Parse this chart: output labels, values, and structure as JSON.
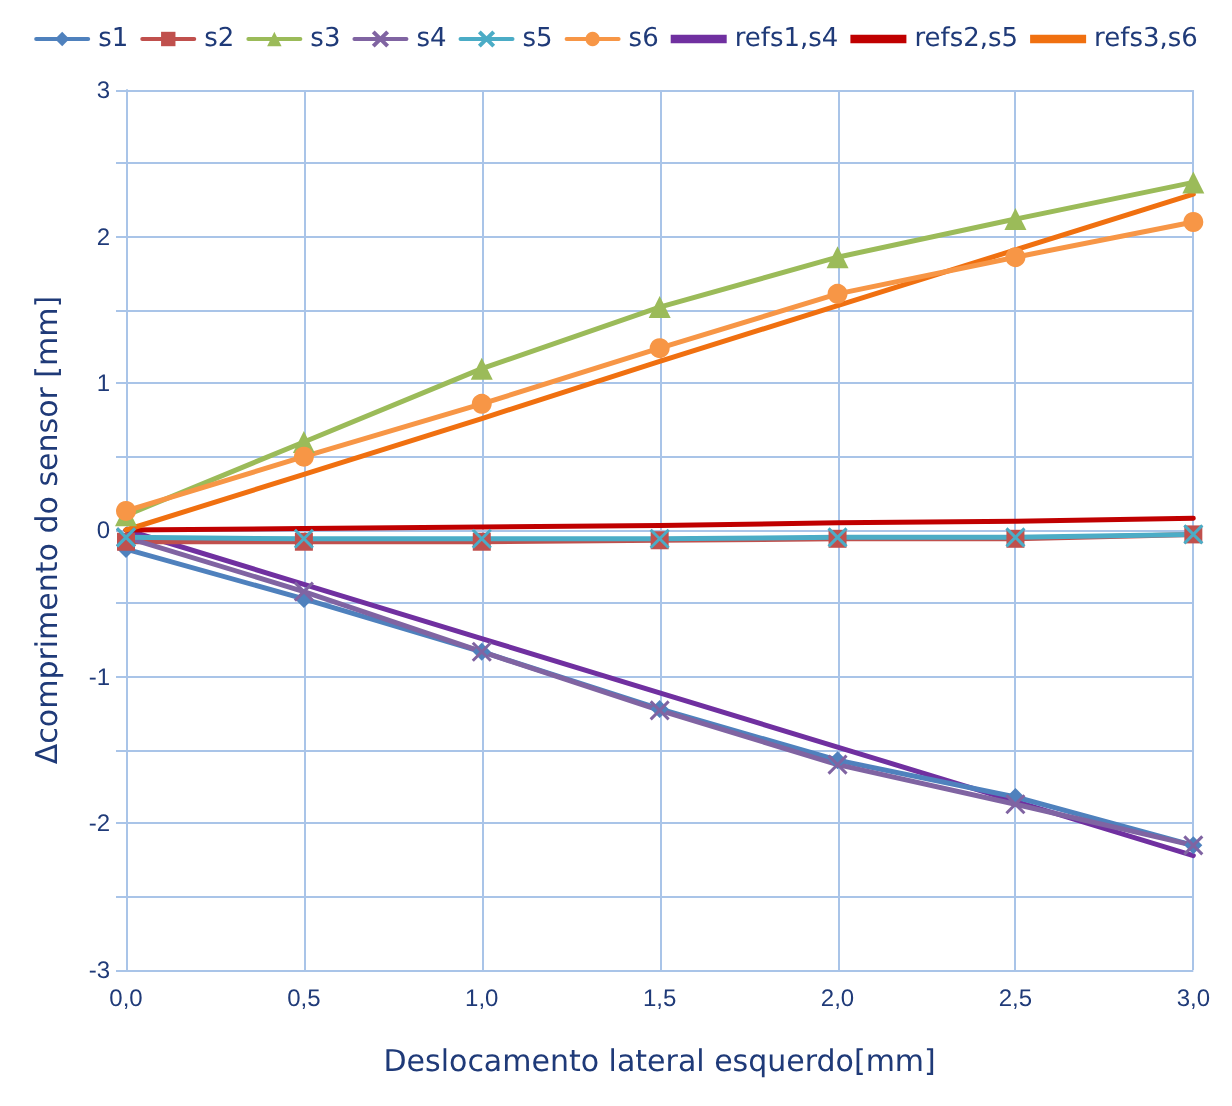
{
  "chart_data": {
    "type": "line",
    "xlabel": "Deslocamento lateral esquerdo[mm]",
    "ylabel": "Δcomprimento do sensor [mm]",
    "x": [
      0,
      0.5,
      1,
      1.5,
      2,
      2.5,
      3
    ],
    "xlim": [
      0,
      3
    ],
    "xticks": [
      {
        "value": 0,
        "label": "0,0"
      },
      {
        "value": 0.5,
        "label": "0,5"
      },
      {
        "value": 1,
        "label": "1,0"
      },
      {
        "value": 1.5,
        "label": "1,5"
      },
      {
        "value": 2,
        "label": "2,0"
      },
      {
        "value": 2.5,
        "label": "2,5"
      },
      {
        "value": 3,
        "label": "3,0"
      }
    ],
    "ylim": [
      -3,
      3
    ],
    "yticks": [
      -3,
      {
        "value": -2.5,
        "label": null
      },
      -2,
      {
        "value": -1.5,
        "label": null
      },
      -1,
      {
        "value": -0.5,
        "label": null
      },
      0,
      {
        "value": 0.5,
        "label": null
      },
      1,
      {
        "value": 1.5,
        "label": null
      },
      2,
      {
        "value": 2.5,
        "label": null
      },
      3
    ],
    "grid": true,
    "legend": "top",
    "line_style": "solid",
    "series": [
      {
        "name": "s1",
        "color": "#4f81bd",
        "marker": "diamond",
        "values": [
          -0.13,
          -0.47,
          -0.83,
          -1.22,
          -1.57,
          -1.82,
          -2.15
        ]
      },
      {
        "name": "s2",
        "color": "#c0504d",
        "marker": "square",
        "values": [
          -0.08,
          -0.08,
          -0.08,
          -0.07,
          -0.06,
          -0.06,
          -0.03
        ]
      },
      {
        "name": "s3",
        "color": "#9bbb59",
        "marker": "triangle",
        "values": [
          0.1,
          0.6,
          1.1,
          1.52,
          1.86,
          2.12,
          2.37
        ]
      },
      {
        "name": "s4",
        "color": "#8064a2",
        "marker": "cross",
        "values": [
          -0.05,
          -0.42,
          -0.83,
          -1.23,
          -1.6,
          -1.87,
          -2.15
        ]
      },
      {
        "name": "s5",
        "color": "#4bacc6",
        "marker": "cross",
        "values": [
          -0.05,
          -0.06,
          -0.06,
          -0.06,
          -0.05,
          -0.05,
          -0.03
        ]
      },
      {
        "name": "s6",
        "color": "#f79646",
        "marker": "circle",
        "values": [
          0.13,
          0.5,
          0.86,
          1.24,
          1.61,
          1.86,
          2.1
        ]
      },
      {
        "name": "refs1,s4",
        "color": "#7030a0",
        "marker": "none",
        "values": [
          0,
          -0.37,
          -0.74,
          -1.11,
          -1.48,
          -1.85,
          -2.22
        ]
      },
      {
        "name": "refs2,s5",
        "color": "#c00000",
        "marker": "none",
        "values": [
          0,
          0.01,
          0.02,
          0.03,
          0.05,
          0.06,
          0.08
        ]
      },
      {
        "name": "refs3,s6",
        "color": "#f07010",
        "marker": "none",
        "values": [
          0,
          0.38,
          0.76,
          1.15,
          1.53,
          1.91,
          2.29
        ]
      }
    ]
  }
}
